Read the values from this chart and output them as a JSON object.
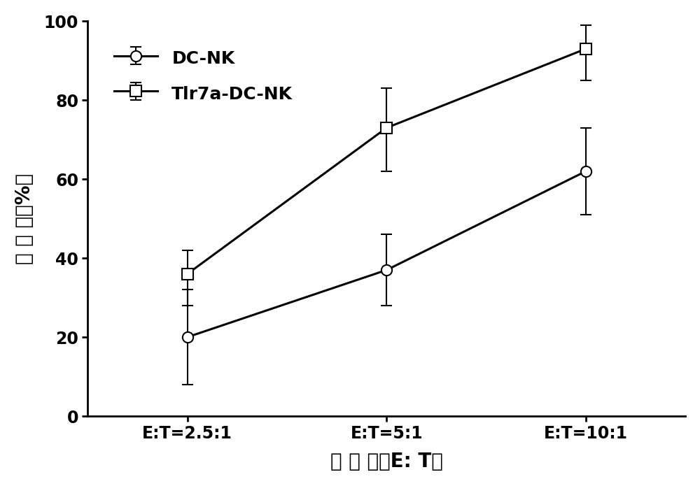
{
  "x_positions": [
    1,
    2,
    3
  ],
  "x_labels": [
    "E:T=2.5:1",
    "E:T=5:1",
    "E:T=10:1"
  ],
  "series": [
    {
      "name": "DC-NK",
      "y": [
        20,
        37,
        62
      ],
      "yerr_low": [
        12,
        9,
        11
      ],
      "yerr_high": [
        12,
        9,
        11
      ],
      "marker": "o",
      "markersize": 11,
      "markerfacecolor": "white",
      "markeredgecolor": "black",
      "linecolor": "black"
    },
    {
      "name": "Tlr7a-DC-NK",
      "y": [
        36,
        73,
        93
      ],
      "yerr_low": [
        8,
        11,
        8
      ],
      "yerr_high": [
        6,
        10,
        6
      ],
      "marker": "s",
      "markersize": 11,
      "markerfacecolor": "white",
      "markeredgecolor": "black",
      "linecolor": "black"
    }
  ],
  "xlabel": "效 靶 比（E: T）",
  "ylabel": "杀 伤 率（%）",
  "ylim": [
    0,
    100
  ],
  "yticks": [
    0,
    20,
    40,
    60,
    80,
    100
  ],
  "legend_loc": "upper left",
  "background_color": "#ffffff",
  "axis_fontsize": 20,
  "tick_fontsize": 17,
  "legend_fontsize": 18,
  "linewidth": 2.2,
  "capsize": 6
}
